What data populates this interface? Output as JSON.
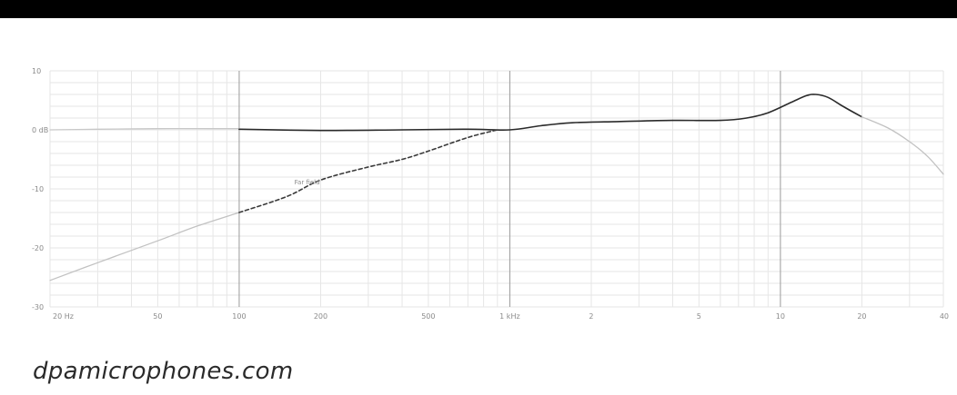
{
  "footer": {
    "text": "dpamicrophones.com"
  },
  "colors": {
    "top_bar": "#000000",
    "grid_minor": "#e6e6e6",
    "grid_major": "#9a9a9a",
    "curve_dark": "#2a2a2a",
    "curve_light": "#c2c2c2",
    "tick_text": "#8a8a8a"
  },
  "chart_data": {
    "type": "line",
    "x_scale": "log",
    "xlim": [
      20,
      40000
    ],
    "ylim": [
      -30,
      10
    ],
    "grid": true,
    "y_ticks": [
      {
        "value": 10,
        "label": "10"
      },
      {
        "value": 0,
        "label": "0 dB"
      },
      {
        "value": -10,
        "label": "-10"
      },
      {
        "value": -20,
        "label": "-20"
      },
      {
        "value": -30,
        "label": "-30"
      }
    ],
    "x_ticks": [
      {
        "value": 20,
        "label": "20 Hz"
      },
      {
        "value": 50,
        "label": "50"
      },
      {
        "value": 100,
        "label": "100"
      },
      {
        "value": 200,
        "label": "200"
      },
      {
        "value": 500,
        "label": "500"
      },
      {
        "value": 1000,
        "label": "1 kHz"
      },
      {
        "value": 2000,
        "label": "2"
      },
      {
        "value": 5000,
        "label": "5"
      },
      {
        "value": 10000,
        "label": "10"
      },
      {
        "value": 20000,
        "label": "20"
      },
      {
        "value": 40000,
        "label": "40"
      }
    ],
    "annotations": [
      {
        "text": "Far field",
        "x": 160,
        "y": -9.2
      }
    ],
    "series": [
      {
        "style": "solid-light",
        "color": "#c8c8c8",
        "x": [
          20,
          30,
          50,
          80,
          100
        ],
        "y": [
          0,
          0.1,
          0.2,
          0.2,
          0.2
        ]
      },
      {
        "style": "solid-dark",
        "color": "#2a2a2a",
        "x": [
          100,
          200,
          400,
          700,
          1000,
          1300,
          1700,
          2500,
          4000,
          6000,
          7500,
          9000,
          11000,
          12500,
          13500,
          15000,
          17000,
          20000
        ],
        "y": [
          0.1,
          -0.1,
          0,
          0.1,
          0,
          0.7,
          1.2,
          1.4,
          1.6,
          1.6,
          2,
          2.9,
          4.7,
          5.8,
          6,
          5.5,
          4,
          2.2
        ]
      },
      {
        "style": "solid-light",
        "color": "#c2c2c2",
        "x": [
          20000,
          25000,
          30000,
          35000,
          40000
        ],
        "y": [
          2.2,
          0.3,
          -2,
          -4.5,
          -7.5
        ]
      },
      {
        "style": "solid-light",
        "color": "#c2c2c2",
        "x": [
          20,
          30,
          50,
          70,
          100
        ],
        "y": [
          -25.5,
          -22.5,
          -18.8,
          -16.3,
          -14
        ]
      },
      {
        "style": "dashed",
        "color": "#3a3a3a",
        "x": [
          100,
          150,
          200,
          300,
          400,
          500,
          700,
          900
        ],
        "y": [
          -14,
          -11.3,
          -8.5,
          -6.3,
          -5,
          -3.6,
          -1.3,
          0
        ]
      }
    ]
  }
}
